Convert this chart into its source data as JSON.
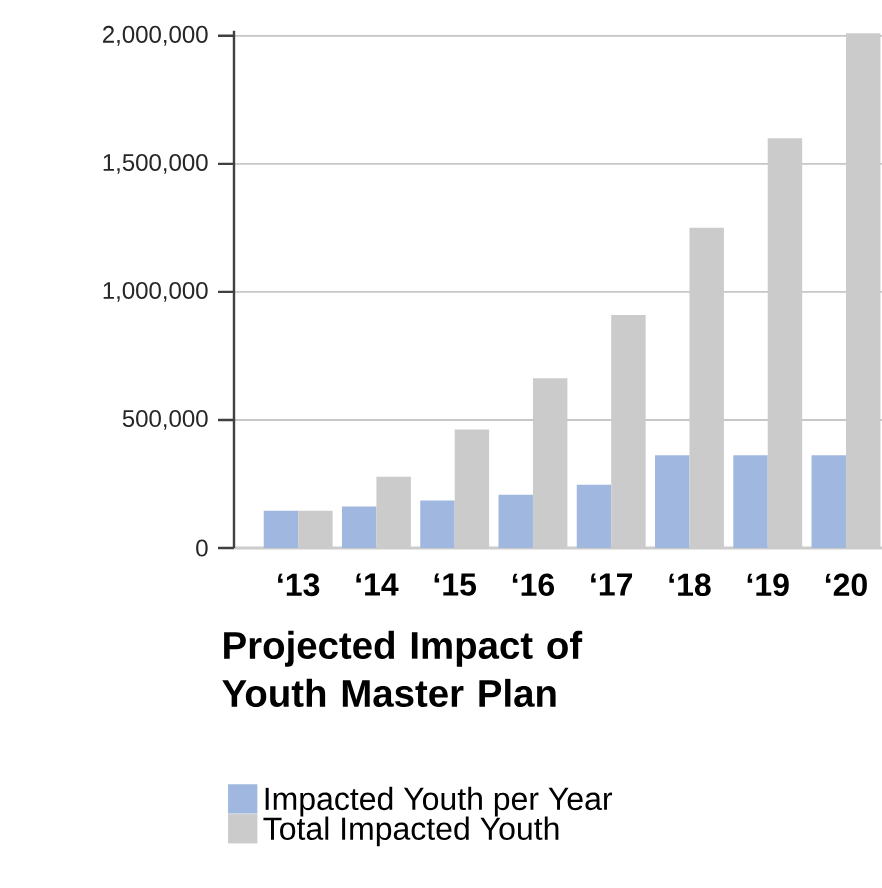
{
  "chart_data": {
    "type": "bar",
    "title": "Projected Impact of Youth Master Plan",
    "categories": [
      "‘13",
      "‘14",
      "‘15",
      "‘16",
      "‘17",
      "‘18",
      "‘19",
      "‘20"
    ],
    "series": [
      {
        "name": "Impacted Youth per Year",
        "color": "#a0b8df",
        "values": [
          145000,
          162000,
          185000,
          208000,
          247000,
          362000,
          362000,
          362000
        ]
      },
      {
        "name": "Total Impacted Youth",
        "color": "#cbcbcb",
        "values": [
          145000,
          278000,
          463000,
          663000,
          910000,
          1250000,
          1600000,
          2010000
        ]
      }
    ],
    "ylim": [
      0,
      2020000
    ],
    "yticks": [
      0,
      {
        "value": 500000,
        "label": "500,000"
      },
      {
        "value": 1000000,
        "label": "1,000,000"
      },
      {
        "value": 1500000,
        "label": "1,500,000"
      },
      {
        "value": 2000000,
        "label": "2,000,000"
      }
    ],
    "grid": "y",
    "legend": "bottom left"
  }
}
